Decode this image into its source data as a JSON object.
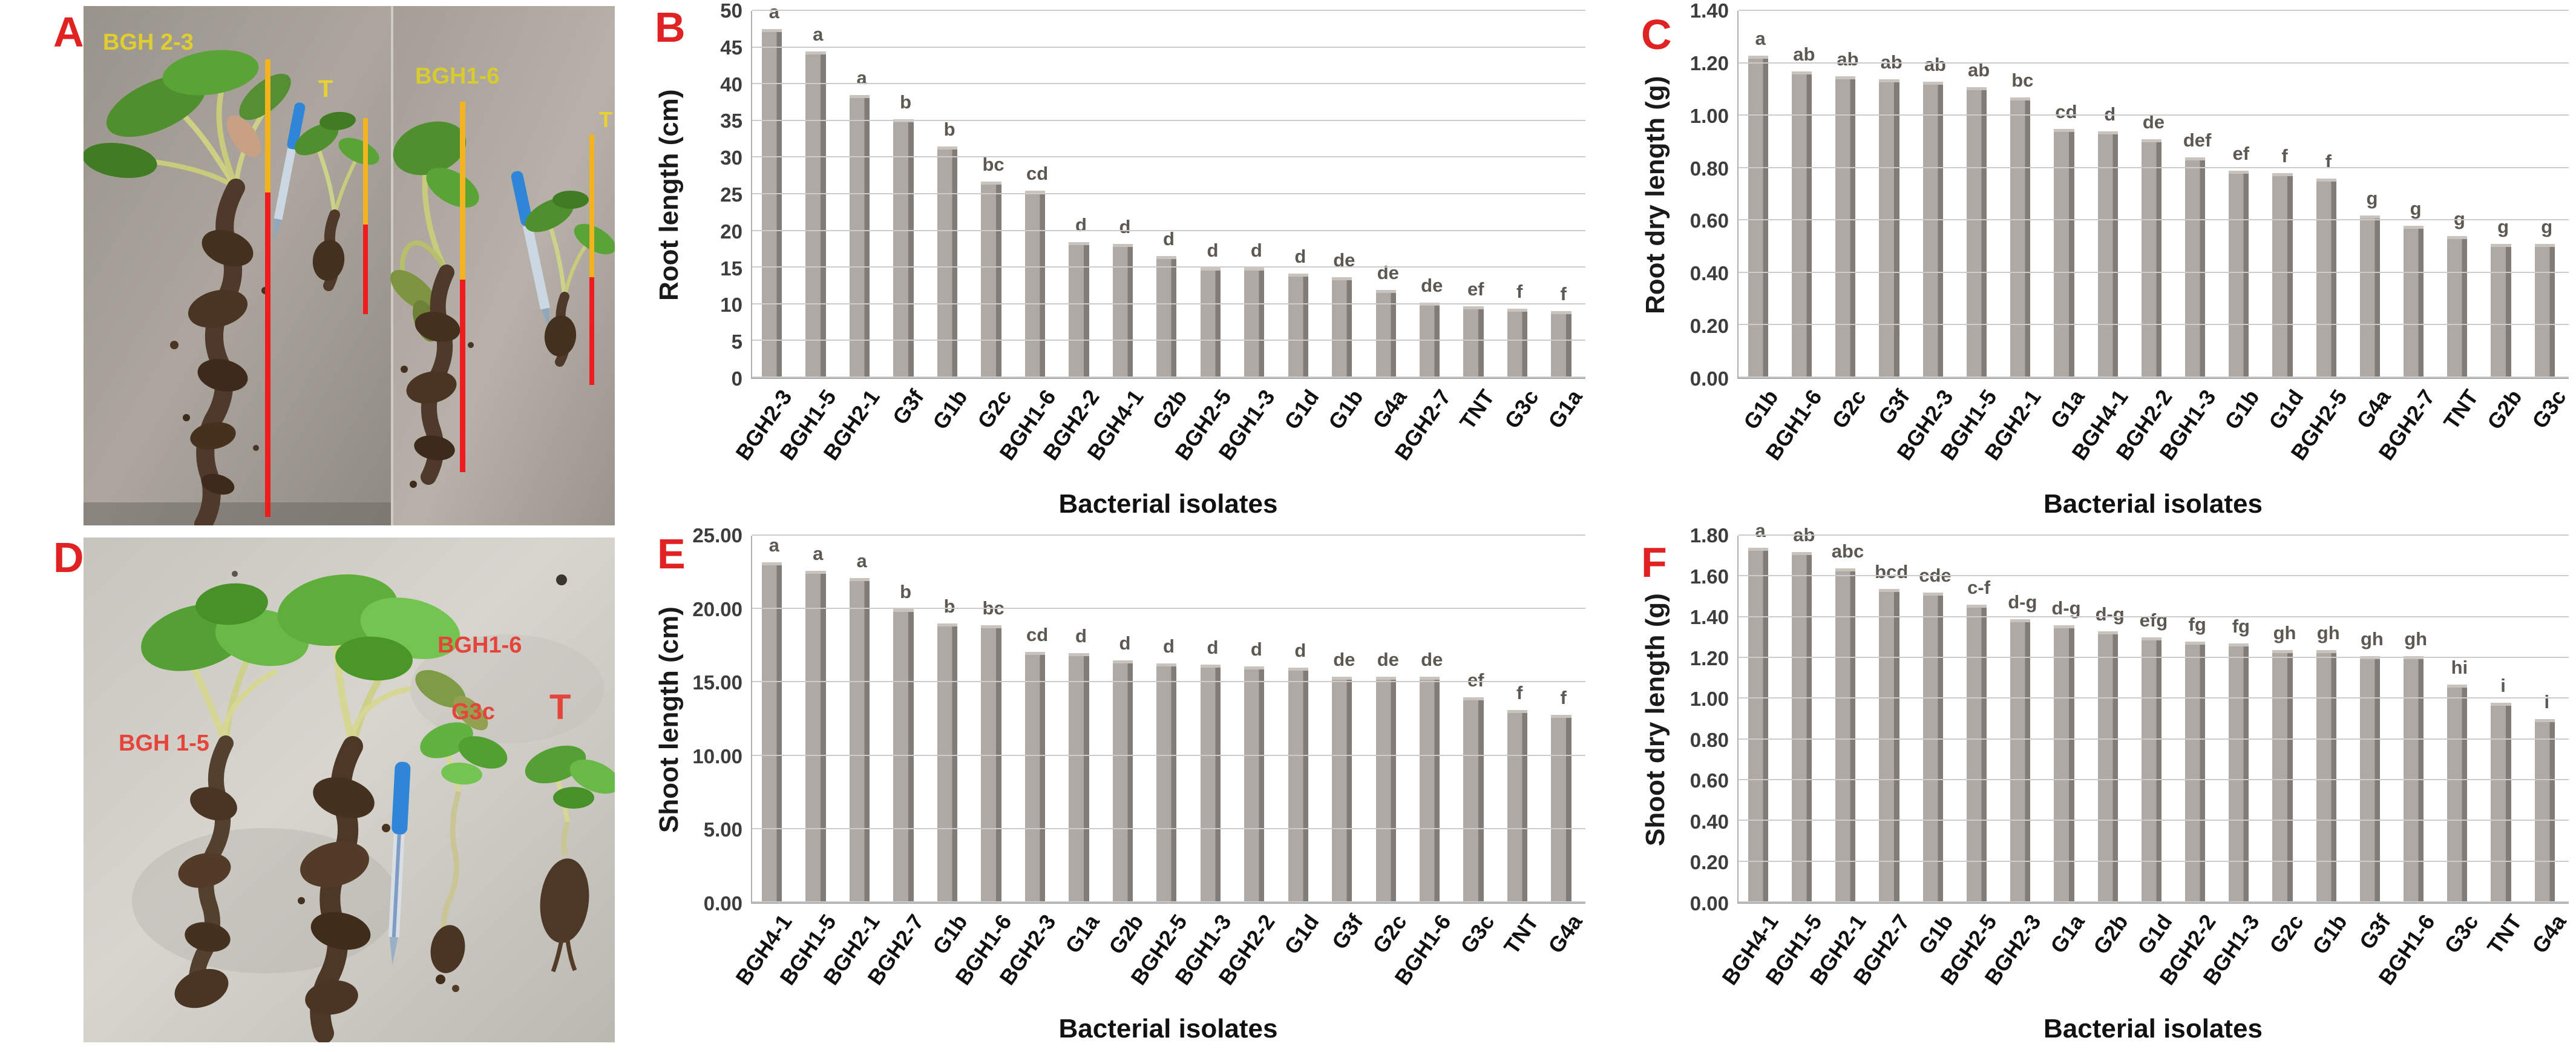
{
  "figure": {
    "type": "six-panel scientific figure",
    "x_axis_title": "Bacterial isolates"
  },
  "colors": {
    "panel_letter": "#e02222",
    "sig_letter": "#5c5852",
    "gridline": "#cccccc",
    "bar_front": "#afa9a6",
    "bar_side": "#827c78",
    "bar_bevel": "#c9c3be",
    "photo_a_label": "#e8d233",
    "photo_d_label": "#e5443a",
    "measure_shoot_line": "#f2b31c",
    "measure_root_line": "#ee1c1c",
    "pen_blue": "#2f86d8"
  },
  "panels": {
    "a": {
      "letter": "A",
      "photo_labels": [
        {
          "text": "BGH 2-3",
          "color": "#e0ce30"
        },
        {
          "text": "T",
          "color": "#e8d233"
        },
        {
          "text": "BGH1-6",
          "color": "#d7cb2e"
        },
        {
          "text": "T",
          "color": "#e8d233"
        }
      ]
    },
    "b": {
      "letter": "B"
    },
    "c": {
      "letter": "C"
    },
    "d": {
      "letter": "D",
      "photo_labels": [
        {
          "text": "BGH 1-5",
          "color": "#e5443a"
        },
        {
          "text": "BGH1-6",
          "color": "#e5443a"
        },
        {
          "text": "G3c",
          "color": "#e5443a"
        },
        {
          "text": "T",
          "color": "#e5443a"
        }
      ]
    },
    "e": {
      "letter": "E"
    },
    "f": {
      "letter": "F"
    }
  },
  "chart_data": [
    {
      "panel": "B",
      "type": "bar",
      "title": "",
      "ylabel": "Root length (cm)",
      "xlabel": "Bacterial isolates",
      "ylim": [
        0,
        50
      ],
      "ytick_step": 5,
      "ytick_decimals": 0,
      "grid": true,
      "legend": null,
      "categories": [
        "BGH2-3",
        "BGH1-5",
        "BGH2-1",
        "G3f",
        "G1b",
        "G2c",
        "BGH1-6",
        "BGH2-2",
        "BGH4-1",
        "G2b",
        "BGH2-5",
        "BGH1-3",
        "G1d",
        "G1b",
        "G4a",
        "BGH2-7",
        "TNT",
        "G3c",
        "G1a"
      ],
      "values": [
        47.5,
        44.5,
        38.5,
        35.2,
        31.5,
        26.7,
        25.5,
        18.5,
        18.2,
        16.6,
        15.0,
        15.0,
        14.2,
        13.7,
        12.0,
        10.2,
        9.7,
        9.4,
        9.1
      ],
      "sig_letters": [
        "a",
        "a",
        "a",
        "b",
        "b",
        "bc",
        "cd",
        "d",
        "d",
        "d",
        "d",
        "d",
        "d",
        "de",
        "de",
        "de",
        "ef",
        "f",
        "f"
      ]
    },
    {
      "panel": "C",
      "type": "bar",
      "title": "",
      "ylabel": "Root dry length (g)",
      "xlabel": "Bacterial isolates",
      "ylim": [
        0,
        1.4
      ],
      "ytick_step": 0.2,
      "ytick_decimals": 2,
      "grid": true,
      "legend": null,
      "categories": [
        "G1b",
        "BGH1-6",
        "G2c",
        "G3f",
        "BGH2-3",
        "BGH1-5",
        "BGH2-1",
        "G1a",
        "BGH4-1",
        "BGH2-2",
        "BGH1-3",
        "G1b",
        "G1d",
        "BGH2-5",
        "G4a",
        "BGH2-7",
        "TNT",
        "G2b",
        "G3c"
      ],
      "values": [
        1.23,
        1.17,
        1.15,
        1.14,
        1.13,
        1.11,
        1.07,
        0.95,
        0.94,
        0.91,
        0.84,
        0.79,
        0.78,
        0.76,
        0.62,
        0.58,
        0.54,
        0.51,
        0.51
      ],
      "sig_letters": [
        "a",
        "ab",
        "ab",
        "ab",
        "ab",
        "ab",
        "bc",
        "cd",
        "d",
        "de",
        "def",
        "ef",
        "f",
        "f",
        "g",
        "g",
        "g",
        "g",
        "g"
      ]
    },
    {
      "panel": "E",
      "type": "bar",
      "title": "",
      "ylabel": "Shoot length (cm)",
      "xlabel": "Bacterial isolates",
      "ylim": [
        0,
        25
      ],
      "ytick_step": 5,
      "ytick_decimals": 2,
      "grid": true,
      "legend": null,
      "categories": [
        "BGH4-1",
        "BGH1-5",
        "BGH2-1",
        "BGH2-7",
        "G1b",
        "BGH1-6",
        "BGH2-3",
        "G1a",
        "G2b",
        "BGH2-5",
        "BGH1-3",
        "BGH2-2",
        "G1d",
        "G3f",
        "G2c",
        "BGH1-6",
        "G3c",
        "TNT",
        "G4a"
      ],
      "values": [
        23.2,
        22.6,
        22.1,
        20.0,
        19.0,
        18.9,
        17.1,
        17.0,
        16.5,
        16.3,
        16.2,
        16.1,
        16.0,
        15.4,
        15.4,
        15.4,
        14.0,
        13.1,
        12.8
      ],
      "sig_letters": [
        "a",
        "a",
        "a",
        "b",
        "b",
        "bc",
        "cd",
        "d",
        "d",
        "d",
        "d",
        "d",
        "d",
        "de",
        "de",
        "de",
        "ef",
        "f",
        "f"
      ]
    },
    {
      "panel": "F",
      "type": "bar",
      "title": "",
      "ylabel": "Shoot dry length (g)",
      "xlabel": "Bacterial isolates",
      "ylim": [
        0,
        1.8
      ],
      "ytick_step": 0.2,
      "ytick_decimals": 2,
      "grid": true,
      "legend": null,
      "categories": [
        "BGH4-1",
        "BGH1-5",
        "BGH2-1",
        "BGH2-7",
        "G1b",
        "BGH2-5",
        "BGH2-3",
        "G1a",
        "G2b",
        "G1d",
        "BGH2-2",
        "BGH1-3",
        "G2c",
        "G1b",
        "G3f",
        "BGH1-6",
        "G3c",
        "TNT",
        "G4a"
      ],
      "values": [
        1.74,
        1.72,
        1.64,
        1.54,
        1.52,
        1.46,
        1.39,
        1.36,
        1.33,
        1.3,
        1.28,
        1.27,
        1.24,
        1.24,
        1.21,
        1.21,
        1.07,
        0.98,
        0.9
      ],
      "sig_letters": [
        "a",
        "ab",
        "abc",
        "bcd",
        "cde",
        "c-f",
        "d-g",
        "d-g",
        "d-g",
        "efg",
        "fg",
        "fg",
        "gh",
        "gh",
        "gh",
        "gh",
        "hi",
        "i",
        "i"
      ]
    }
  ]
}
